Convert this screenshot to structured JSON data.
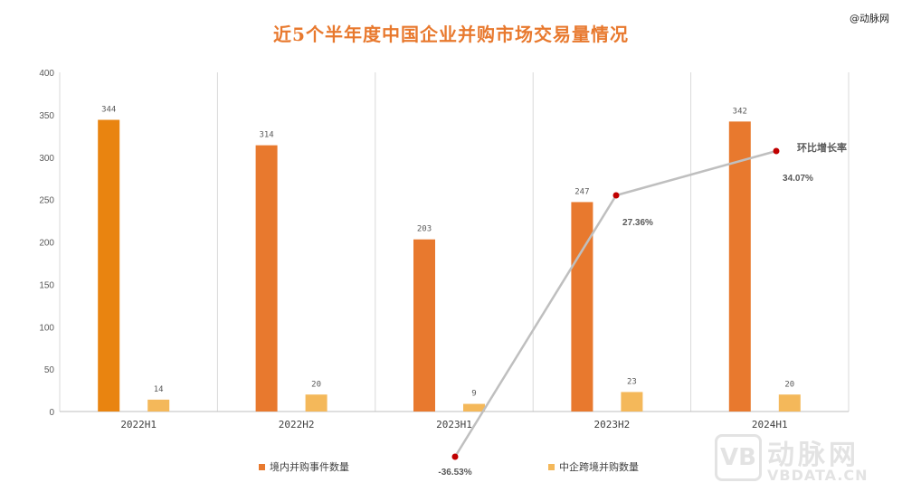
{
  "header": {
    "title": "近5个半年度中国企业并购市场交易量情况",
    "credit": "@动脉网"
  },
  "watermark": {
    "logo": "VB",
    "cn": "动脉网",
    "en": "VBDATA.CN"
  },
  "colors": {
    "domestic": "#e8792e",
    "domestic_first": "#e98410",
    "cross": "#f4b85a",
    "line": "#bfbfbf",
    "marker": "#c00000",
    "grid": "#d9d9d9",
    "axis_text": "#595959"
  },
  "chart_data": {
    "type": "bar",
    "categories": [
      "2022H1",
      "2022H2",
      "2023H1",
      "2023H2",
      "2024H1"
    ],
    "series": [
      {
        "name": "境内并购事件数量",
        "values": [
          344,
          314,
          203,
          247,
          342
        ]
      },
      {
        "name": "中企跨境并购数量",
        "values": [
          14,
          20,
          9,
          23,
          20
        ]
      }
    ],
    "overlay_line": {
      "name": "环比增长率",
      "points": [
        {
          "category": "2023H1",
          "value": -36.53,
          "label": "-36.53%"
        },
        {
          "category": "2023H2",
          "value": 27.36,
          "label": "27.36%"
        },
        {
          "category": "2024H1",
          "value": 34.07,
          "label": "34.07%"
        }
      ]
    },
    "yticks": [
      0,
      50,
      100,
      150,
      200,
      250,
      300,
      350,
      400
    ],
    "ylim": [
      0,
      400
    ],
    "xlabel": "",
    "ylabel": "",
    "legend": "bottom"
  }
}
